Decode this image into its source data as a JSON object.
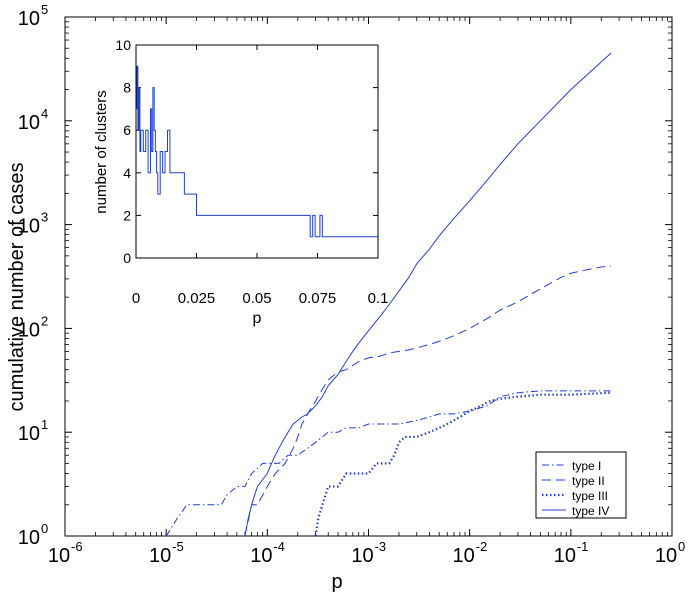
{
  "chart_data": [
    {
      "id": "main",
      "type": "line",
      "scale": "loglog",
      "title": "",
      "xlabel": "p",
      "ylabel": "cumulative number of cases",
      "xlim": [
        1e-06,
        1
      ],
      "ylim": [
        1,
        100000
      ],
      "xticks": [
        {
          "value": 1e-06,
          "base": "10",
          "exp": "-6"
        },
        {
          "value": 1e-05,
          "base": "10",
          "exp": "-5"
        },
        {
          "value": 0.0001,
          "base": "10",
          "exp": "-4"
        },
        {
          "value": 0.001,
          "base": "10",
          "exp": "-3"
        },
        {
          "value": 0.01,
          "base": "10",
          "exp": "-2"
        },
        {
          "value": 0.1,
          "base": "10",
          "exp": "-1"
        },
        {
          "value": 1,
          "base": "10",
          "exp": "0"
        }
      ],
      "yticks": [
        {
          "value": 1,
          "base": "10",
          "exp": "0"
        },
        {
          "value": 10,
          "base": "10",
          "exp": "1"
        },
        {
          "value": 100,
          "base": "10",
          "exp": "2"
        },
        {
          "value": 1000,
          "base": "10",
          "exp": "3"
        },
        {
          "value": 10000,
          "base": "10",
          "exp": "4"
        },
        {
          "value": 100000,
          "base": "10",
          "exp": "5"
        }
      ],
      "color": "#1f3fd6",
      "legend": {
        "position": "bottom-right",
        "entries": [
          "type I",
          "type II",
          "type III",
          "type IV"
        ]
      },
      "series": [
        {
          "name": "type I",
          "style": "dashdot",
          "x": [
            1e-05,
            1.3e-05,
            1.6e-05,
            2e-05,
            2.5e-05,
            3e-05,
            3.5e-05,
            4e-05,
            5e-05,
            6e-05,
            7e-05,
            9e-05,
            0.00011,
            0.00013,
            0.00016,
            0.0002,
            0.00025,
            0.0003,
            0.00035,
            0.0004,
            0.00045,
            0.0005,
            0.0006,
            0.0007,
            0.0008,
            0.001,
            0.0014,
            0.002,
            0.003,
            0.004,
            0.005,
            0.007,
            0.01,
            0.015,
            0.02,
            0.03,
            0.05,
            0.1,
            0.25
          ],
          "y": [
            1,
            1.5,
            2,
            2,
            2,
            2,
            2,
            2.5,
            3,
            3,
            4,
            5,
            5,
            5,
            6,
            6,
            7,
            8,
            9,
            10,
            10,
            10,
            11,
            11,
            11,
            12,
            12,
            12,
            13,
            14,
            15,
            15,
            16,
            18,
            22,
            24,
            25,
            25,
            25
          ]
        },
        {
          "name": "type II",
          "style": "dashed",
          "x": [
            6e-05,
            7e-05,
            8e-05,
            0.0001,
            0.00012,
            0.00015,
            0.00018,
            0.0002,
            0.00022,
            0.00025,
            0.0003,
            0.00035,
            0.0004,
            0.0005,
            0.0006,
            0.0007,
            0.0008,
            0.001,
            0.0013,
            0.0016,
            0.002,
            0.0025,
            0.003,
            0.004,
            0.005,
            0.007,
            0.01,
            0.015,
            0.02,
            0.03,
            0.05,
            0.08,
            0.1,
            0.15,
            0.2,
            0.25
          ],
          "y": [
            1,
            2,
            2,
            3,
            4,
            5,
            7,
            9,
            12,
            15,
            20,
            26,
            32,
            38,
            40,
            44,
            48,
            52,
            54,
            58,
            60,
            62,
            65,
            70,
            75,
            85,
            100,
            125,
            150,
            180,
            240,
            310,
            340,
            370,
            390,
            400
          ]
        },
        {
          "name": "type III",
          "style": "dotted",
          "x": [
            0.0003,
            0.00032,
            0.00035,
            0.0004,
            0.00045,
            0.0005,
            0.0006,
            0.0007,
            0.0008,
            0.001,
            0.0012,
            0.0014,
            0.0016,
            0.0018,
            0.002,
            0.0023,
            0.0026,
            0.003,
            0.004,
            0.005,
            0.006,
            0.008,
            0.01,
            0.013,
            0.016,
            0.02,
            0.03,
            0.05,
            0.08,
            0.1,
            0.25
          ],
          "y": [
            1,
            1.5,
            2,
            3,
            3,
            3,
            4,
            4,
            4,
            4,
            5,
            5,
            5,
            6,
            8,
            9,
            9,
            9,
            10,
            11,
            12,
            14,
            16,
            18,
            20,
            21,
            22,
            23,
            23,
            23,
            24
          ]
        },
        {
          "name": "type IV",
          "style": "solid",
          "x": [
            6e-05,
            6.5e-05,
            7e-05,
            7.5e-05,
            8e-05,
            9e-05,
            0.0001,
            0.00011,
            0.00012,
            0.00014,
            0.00016,
            0.00018,
            0.0002,
            0.00022,
            0.00025,
            0.0003,
            0.00035,
            0.0004,
            0.0005,
            0.0006,
            0.0007,
            0.0008,
            0.001,
            0.0013,
            0.0016,
            0.002,
            0.0025,
            0.003,
            0.004,
            0.005,
            0.007,
            0.01,
            0.015,
            0.02,
            0.03,
            0.05,
            0.1,
            0.25
          ],
          "y": [
            1,
            1.5,
            2,
            2.5,
            3,
            3.5,
            4,
            5,
            6,
            8,
            10,
            12,
            13,
            14,
            15,
            18,
            22,
            28,
            36,
            48,
            60,
            72,
            95,
            130,
            170,
            230,
            310,
            420,
            580,
            780,
            1150,
            1700,
            2700,
            3800,
            6000,
            10000,
            20000,
            45000
          ]
        }
      ]
    },
    {
      "id": "inset",
      "type": "line",
      "scale": "linear",
      "title": "",
      "xlabel": "p",
      "ylabel": "number of clusters",
      "xlim": [
        0,
        0.1
      ],
      "ylim": [
        0,
        10
      ],
      "xticks": [
        {
          "value": 0,
          "label": "0"
        },
        {
          "value": 0.025,
          "label": "0.025"
        },
        {
          "value": 0.05,
          "label": "0.05"
        },
        {
          "value": 0.075,
          "label": "0.075"
        },
        {
          "value": 0.1,
          "label": "0.1"
        }
      ],
      "yticks": [
        {
          "value": 0,
          "label": "0"
        },
        {
          "value": 2,
          "label": "2"
        },
        {
          "value": 4,
          "label": "4"
        },
        {
          "value": 6,
          "label": "6"
        },
        {
          "value": 8,
          "label": "8"
        },
        {
          "value": 10,
          "label": "10"
        }
      ],
      "color": "#1f3fd6",
      "series": [
        {
          "name": "clusters",
          "style": "steps",
          "x": [
            0,
            0.0004,
            0.0008,
            0.0012,
            0.0016,
            0.002,
            0.003,
            0.004,
            0.005,
            0.006,
            0.0065,
            0.007,
            0.0075,
            0.008,
            0.0085,
            0.009,
            0.01,
            0.011,
            0.012,
            0.013,
            0.014,
            0.015,
            0.02,
            0.025,
            0.05,
            0.072,
            0.073,
            0.074,
            0.075,
            0.076,
            0.077,
            0.1
          ],
          "y": [
            7,
            9,
            6,
            8,
            5,
            6,
            5,
            6,
            4,
            7,
            5,
            8,
            6,
            5,
            4,
            3,
            5,
            4,
            5,
            6,
            4,
            4,
            3,
            2,
            2,
            1,
            2,
            1,
            1,
            2,
            1,
            1
          ]
        }
      ]
    }
  ]
}
